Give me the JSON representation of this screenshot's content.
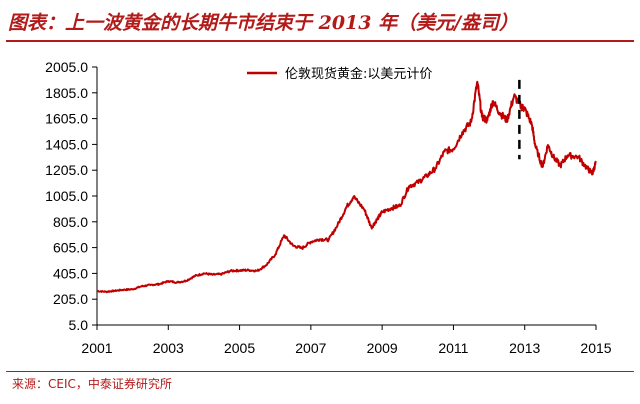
{
  "header": {
    "title": "图表：上一波黄金的长期牛市结束于 2013 年（美元/盎司）"
  },
  "footer": {
    "source": "来源：CEIC，中泰证券研究所"
  },
  "colors": {
    "series": "#c00000",
    "accent": "#b31b1b",
    "marker": "#000000"
  },
  "chart_data": {
    "type": "line",
    "title": "",
    "xlabel": "",
    "ylabel": "",
    "xlim": [
      2001,
      2015
    ],
    "ylim": [
      5.0,
      2005.0
    ],
    "y_ticks": [
      "2005.0",
      "1805.0",
      "1605.0",
      "1405.0",
      "1205.0",
      "1005.0",
      "805.0",
      "605.0",
      "405.0",
      "205.0",
      "5.0"
    ],
    "x_ticks": [
      "2001",
      "2003",
      "2005",
      "2007",
      "2009",
      "2011",
      "2013",
      "2015"
    ],
    "grid": false,
    "legend": {
      "position": "top-center",
      "entries": [
        "伦敦现货黄金:以美元计价"
      ]
    },
    "annotations": [
      {
        "type": "vertical-dashed-line",
        "x": 2012.85,
        "y_range": [
          1290,
          1905
        ],
        "meaning": "end of bull market"
      }
    ],
    "series": [
      {
        "name": "伦敦现货黄金:以美元计价",
        "points": [
          [
            2001.0,
            268
          ],
          [
            2001.25,
            263
          ],
          [
            2001.5,
            270
          ],
          [
            2001.75,
            278
          ],
          [
            2002.0,
            282
          ],
          [
            2002.25,
            305
          ],
          [
            2002.5,
            315
          ],
          [
            2002.75,
            322
          ],
          [
            2003.0,
            345
          ],
          [
            2003.25,
            335
          ],
          [
            2003.5,
            348
          ],
          [
            2003.75,
            385
          ],
          [
            2004.0,
            405
          ],
          [
            2004.25,
            395
          ],
          [
            2004.5,
            400
          ],
          [
            2004.75,
            425
          ],
          [
            2005.0,
            428
          ],
          [
            2005.25,
            430
          ],
          [
            2005.5,
            425
          ],
          [
            2005.75,
            470
          ],
          [
            2006.0,
            550
          ],
          [
            2006.25,
            700
          ],
          [
            2006.5,
            620
          ],
          [
            2006.75,
            600
          ],
          [
            2007.0,
            650
          ],
          [
            2007.25,
            670
          ],
          [
            2007.5,
            665
          ],
          [
            2007.75,
            780
          ],
          [
            2008.0,
            920
          ],
          [
            2008.2,
            1000
          ],
          [
            2008.5,
            900
          ],
          [
            2008.7,
            760
          ],
          [
            2008.85,
            820
          ],
          [
            2009.0,
            880
          ],
          [
            2009.25,
            910
          ],
          [
            2009.5,
            930
          ],
          [
            2009.75,
            1080
          ],
          [
            2010.0,
            1110
          ],
          [
            2010.25,
            1160
          ],
          [
            2010.5,
            1220
          ],
          [
            2010.75,
            1350
          ],
          [
            2011.0,
            1370
          ],
          [
            2011.25,
            1500
          ],
          [
            2011.5,
            1580
          ],
          [
            2011.67,
            1890
          ],
          [
            2011.8,
            1620
          ],
          [
            2011.95,
            1590
          ],
          [
            2012.1,
            1740
          ],
          [
            2012.3,
            1650
          ],
          [
            2012.5,
            1590
          ],
          [
            2012.7,
            1780
          ],
          [
            2012.9,
            1700
          ],
          [
            2013.0,
            1680
          ],
          [
            2013.2,
            1560
          ],
          [
            2013.3,
            1390
          ],
          [
            2013.5,
            1230
          ],
          [
            2013.65,
            1400
          ],
          [
            2013.8,
            1310
          ],
          [
            2014.0,
            1240
          ],
          [
            2014.2,
            1320
          ],
          [
            2014.5,
            1310
          ],
          [
            2014.75,
            1220
          ],
          [
            2014.9,
            1180
          ],
          [
            2015.0,
            1270
          ]
        ]
      }
    ]
  }
}
